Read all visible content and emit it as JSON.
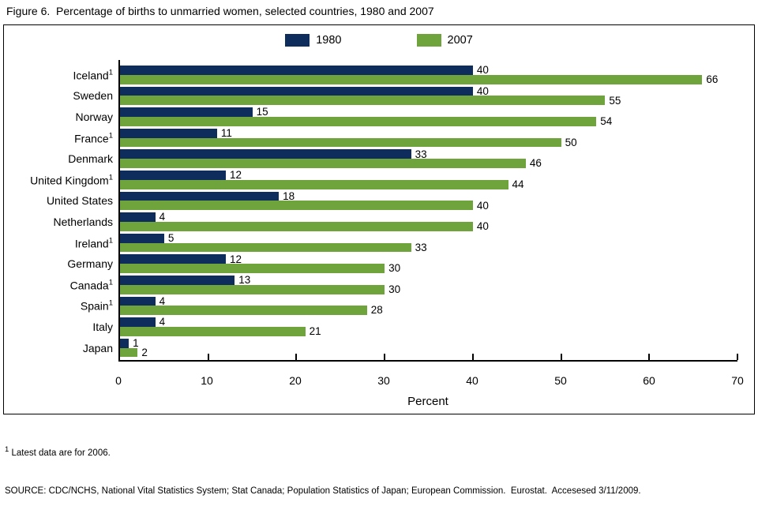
{
  "title": "Figure 6.  Percentage of births to unmarried women, selected countries, 1980 and 2007",
  "legend": {
    "items": [
      {
        "label": "1980",
        "color": "#0e2d5c"
      },
      {
        "label": "2007",
        "color": "#6fa33b"
      }
    ]
  },
  "chart_data": {
    "type": "bar",
    "orientation": "horizontal",
    "title": "Figure 6.  Percentage of births to unmarried women, selected countries, 1980 and 2007",
    "xlabel": "Percent",
    "xlim": [
      0,
      70
    ],
    "xticks": [
      0,
      10,
      20,
      30,
      40,
      50,
      60,
      70
    ],
    "grid": false,
    "legend_position": "top-center",
    "value_labels": true,
    "categories": [
      {
        "label": "Iceland",
        "sup": "1"
      },
      {
        "label": "Sweden",
        "sup": ""
      },
      {
        "label": "Norway",
        "sup": ""
      },
      {
        "label": "France",
        "sup": "1"
      },
      {
        "label": "Denmark",
        "sup": ""
      },
      {
        "label": "United Kingdom",
        "sup": "1"
      },
      {
        "label": "United States",
        "sup": ""
      },
      {
        "label": "Netherlands",
        "sup": ""
      },
      {
        "label": "Ireland",
        "sup": "1"
      },
      {
        "label": "Germany",
        "sup": ""
      },
      {
        "label": "Canada",
        "sup": "1"
      },
      {
        "label": "Spain",
        "sup": "1"
      },
      {
        "label": "Italy",
        "sup": ""
      },
      {
        "label": "Japan",
        "sup": ""
      }
    ],
    "series": [
      {
        "name": "1980",
        "color": "#0e2d5c",
        "values": [
          40,
          40,
          15,
          11,
          33,
          12,
          18,
          4,
          5,
          12,
          13,
          4,
          4,
          1
        ]
      },
      {
        "name": "2007",
        "color": "#6fa33b",
        "values": [
          66,
          55,
          54,
          50,
          46,
          44,
          40,
          40,
          33,
          30,
          30,
          28,
          21,
          2
        ]
      }
    ]
  },
  "footnotes": {
    "note1_marker": "1",
    "note1_text": " Latest data are for 2006.",
    "source": "SOURCE: CDC/NCHS, National Vital Statistics System; Stat Canada; Population Statistics of Japan; European Commission.  Eurostat.  Accesesed 3/11/2009."
  }
}
